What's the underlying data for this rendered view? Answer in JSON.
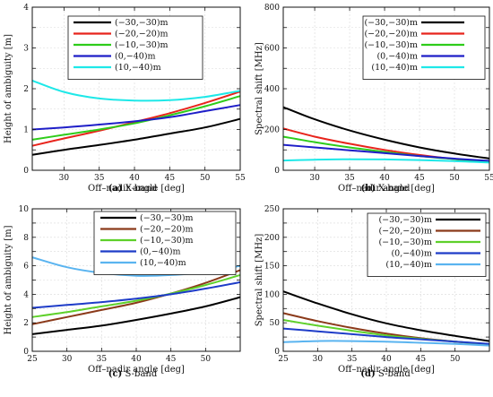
{
  "chart_data": [
    {
      "panel_id": "a",
      "type": "line",
      "caption_letter": "(a)",
      "caption_text": "X-band",
      "xlabel": "Off–nadir angle [deg]",
      "ylabel": "Height of ambiguity [m]",
      "xlim": [
        25.5,
        55
      ],
      "ylim": [
        0,
        4
      ],
      "xticks": [
        30,
        35,
        40,
        45,
        50,
        55
      ],
      "yticks": [
        0,
        0.5,
        1,
        1.5,
        2,
        2.5,
        3,
        3.5,
        4
      ],
      "ytick_labels": [
        "0",
        "",
        "1",
        "",
        "2",
        "",
        "3",
        "",
        "4"
      ],
      "legend_position": "top",
      "series": [
        {
          "name": "(−30,−30)m",
          "color": "#000000",
          "x": [
            25.5,
            30,
            35,
            40,
            45,
            50,
            55
          ],
          "y": [
            0.38,
            0.5,
            0.62,
            0.75,
            0.9,
            1.05,
            1.26
          ]
        },
        {
          "name": "(−20,−20)m",
          "color": "#e8241c",
          "x": [
            25.5,
            30,
            35,
            40,
            45,
            50,
            55
          ],
          "y": [
            0.6,
            0.78,
            0.97,
            1.18,
            1.4,
            1.65,
            1.93
          ]
        },
        {
          "name": "(−10,−30)m",
          "color": "#2ecc1a",
          "x": [
            25.5,
            30,
            35,
            40,
            45,
            50,
            55
          ],
          "y": [
            0.75,
            0.87,
            1.0,
            1.15,
            1.35,
            1.57,
            1.82
          ]
        },
        {
          "name": "(0,−40)m",
          "color": "#1e1ec8",
          "x": [
            25.5,
            30,
            35,
            40,
            45,
            50,
            55
          ],
          "y": [
            1.0,
            1.05,
            1.12,
            1.2,
            1.3,
            1.45,
            1.6
          ]
        },
        {
          "name": "(10,−40)m",
          "color": "#1ee8e8",
          "x": [
            25.5,
            30,
            35,
            40,
            45,
            50,
            55
          ],
          "y": [
            2.2,
            1.92,
            1.76,
            1.71,
            1.72,
            1.8,
            1.95
          ]
        }
      ]
    },
    {
      "panel_id": "b",
      "type": "line",
      "caption_letter": "(b)",
      "caption_text": "X-band",
      "xlabel": "Off–nadir angle [deg]",
      "ylabel": "Spectral shift [MHz]",
      "xlim": [
        25.5,
        55
      ],
      "ylim": [
        0,
        800
      ],
      "xticks": [
        30,
        35,
        40,
        45,
        50,
        55
      ],
      "yticks": [
        0,
        100,
        200,
        300,
        400,
        500,
        600,
        700,
        800
      ],
      "ytick_labels": [
        "0",
        "",
        "200",
        "",
        "400",
        "",
        "600",
        "",
        "800"
      ],
      "legend_position": "top-right",
      "series": [
        {
          "name": "(−30,−30)m",
          "color": "#000000",
          "x": [
            25.5,
            30,
            35,
            40,
            45,
            50,
            55
          ],
          "y": [
            310,
            250,
            195,
            150,
            112,
            82,
            58
          ]
        },
        {
          "name": "(−20,−20)m",
          "color": "#e8241c",
          "x": [
            25.5,
            30,
            35,
            40,
            45,
            50,
            55
          ],
          "y": [
            205,
            165,
            130,
            100,
            75,
            55,
            40
          ]
        },
        {
          "name": "(−10,−30)m",
          "color": "#2ecc1a",
          "x": [
            25.5,
            30,
            35,
            40,
            45,
            50,
            55
          ],
          "y": [
            165,
            138,
            112,
            90,
            70,
            55,
            42
          ]
        },
        {
          "name": "(0,−40)m",
          "color": "#1e1ec8",
          "x": [
            25.5,
            30,
            35,
            40,
            45,
            50,
            55
          ],
          "y": [
            125,
            112,
            98,
            84,
            70,
            57,
            46
          ]
        },
        {
          "name": "(10,−40)m",
          "color": "#1ee8e8",
          "x": [
            25.5,
            30,
            35,
            40,
            45,
            50,
            55
          ],
          "y": [
            48,
            52,
            54,
            53,
            50,
            45,
            38
          ]
        }
      ]
    },
    {
      "panel_id": "c",
      "type": "line",
      "caption_letter": "(c)",
      "caption_text": "S-band",
      "xlabel": "Off–nadir angle [deg]",
      "ylabel": "Height of ambiguity [m]",
      "xlim": [
        25,
        55
      ],
      "ylim": [
        0,
        10
      ],
      "xticks": [
        25,
        30,
        35,
        40,
        45,
        50
      ],
      "yticks": [
        0,
        1,
        2,
        3,
        4,
        5,
        6,
        7,
        8,
        9,
        10
      ],
      "ytick_labels": [
        "0",
        "",
        "2",
        "",
        "4",
        "",
        "6",
        "",
        "8",
        "",
        "10"
      ],
      "legend_position": "top-right",
      "series": [
        {
          "name": "(−30,−30)m",
          "color": "#000000",
          "x": [
            25,
            30,
            35,
            40,
            45,
            50,
            55
          ],
          "y": [
            1.2,
            1.5,
            1.8,
            2.2,
            2.65,
            3.15,
            3.8
          ]
        },
        {
          "name": "(−20,−20)m",
          "color": "#8b3a1a",
          "x": [
            25,
            30,
            35,
            40,
            45,
            50,
            55
          ],
          "y": [
            1.9,
            2.4,
            2.9,
            3.4,
            4.05,
            4.8,
            5.7
          ]
        },
        {
          "name": "(−10,−30)m",
          "color": "#5ed02a",
          "x": [
            25,
            30,
            35,
            40,
            45,
            50,
            55
          ],
          "y": [
            2.4,
            2.75,
            3.15,
            3.55,
            4.05,
            4.65,
            5.35
          ]
        },
        {
          "name": "(0,−40)m",
          "color": "#1e3cc8",
          "x": [
            25,
            30,
            35,
            40,
            45,
            50,
            55
          ],
          "y": [
            3.05,
            3.25,
            3.45,
            3.7,
            4.0,
            4.4,
            4.85
          ]
        },
        {
          "name": "(10,−40)m",
          "color": "#5ab4f0",
          "x": [
            25,
            30,
            35,
            40,
            45,
            50,
            55
          ],
          "y": [
            6.6,
            5.9,
            5.5,
            5.3,
            5.35,
            5.55,
            6.0
          ]
        }
      ]
    },
    {
      "panel_id": "d",
      "type": "line",
      "caption_letter": "(d)",
      "caption_text": "S-band",
      "xlabel": "Off–nadir angle [deg]",
      "ylabel": "Spectral shift [MHz]",
      "xlim": [
        25,
        55
      ],
      "ylim": [
        0,
        250
      ],
      "xticks": [
        25,
        30,
        35,
        40,
        45,
        50
      ],
      "yticks": [
        0,
        25,
        50,
        75,
        100,
        125,
        150,
        175,
        200,
        225,
        250
      ],
      "ytick_labels": [
        "0",
        "",
        "50",
        "",
        "100",
        "",
        "150",
        "",
        "200",
        "",
        "250"
      ],
      "legend_position": "right",
      "series": [
        {
          "name": "(−30,−30)m",
          "color": "#000000",
          "x": [
            25,
            30,
            35,
            40,
            45,
            50,
            55
          ],
          "y": [
            105,
            84,
            65,
            49,
            37,
            27,
            18
          ]
        },
        {
          "name": "(−20,−20)m",
          "color": "#8b3a1a",
          "x": [
            25,
            30,
            35,
            40,
            45,
            50,
            55
          ],
          "y": [
            67,
            53,
            41,
            31,
            23,
            17,
            12
          ]
        },
        {
          "name": "(−10,−30)m",
          "color": "#5ed02a",
          "x": [
            25,
            30,
            35,
            40,
            45,
            50,
            55
          ],
          "y": [
            55,
            45,
            36,
            28,
            22,
            17,
            12
          ]
        },
        {
          "name": "(0,−40)m",
          "color": "#1e3cc8",
          "x": [
            25,
            30,
            35,
            40,
            45,
            50,
            55
          ],
          "y": [
            40,
            35,
            30,
            25,
            21,
            17,
            13
          ]
        },
        {
          "name": "(10,−40)m",
          "color": "#5ab4f0",
          "x": [
            25,
            30,
            35,
            40,
            45,
            50,
            55
          ],
          "y": [
            16,
            18,
            18,
            17,
            15,
            13,
            10
          ]
        }
      ]
    }
  ]
}
